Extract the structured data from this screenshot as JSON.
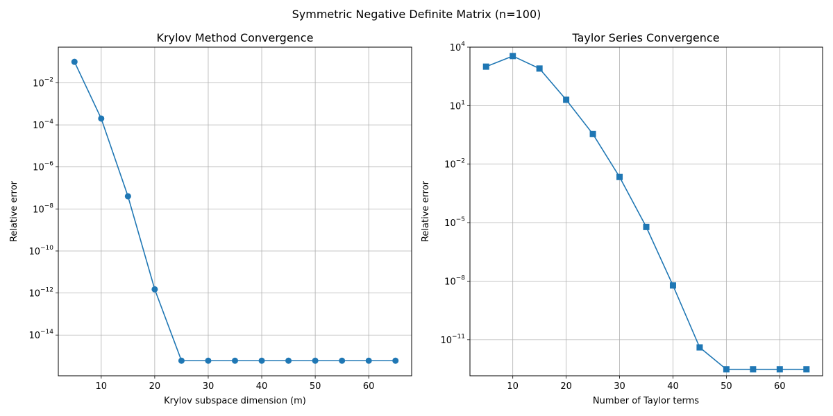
{
  "figure": {
    "suptitle": "Symmetric Negative Definite Matrix (n=100)"
  },
  "chart_data": [
    {
      "type": "line",
      "title": "Krylov Method Convergence",
      "xlabel": "Krylov subspace dimension (m)",
      "ylabel": "Relative error",
      "yscale": "log",
      "grid": true,
      "marker": "circle",
      "color": "#1f77b4",
      "x": [
        5,
        10,
        15,
        20,
        25,
        30,
        35,
        40,
        45,
        50,
        55,
        60,
        65
      ],
      "y": [
        0.1,
        0.0002,
        4e-08,
        1.5e-12,
        6e-16,
        6e-16,
        6e-16,
        6e-16,
        6e-16,
        6e-16,
        6e-16,
        6e-16,
        6e-16
      ],
      "xticks": [
        10,
        20,
        30,
        40,
        50,
        60
      ],
      "xtick_labels": [
        "10",
        "20",
        "30",
        "40",
        "50",
        "60"
      ],
      "xlim": [
        1.98,
        68.02
      ],
      "yticks": [
        1e-14,
        1e-12,
        1e-10,
        1e-08,
        1e-06,
        0.0001,
        0.01
      ],
      "ytick_labels": [
        {
          "base": "10",
          "exp": "−14"
        },
        {
          "base": "10",
          "exp": "−12"
        },
        {
          "base": "10",
          "exp": "−10"
        },
        {
          "base": "10",
          "exp": "−8"
        },
        {
          "base": "10",
          "exp": "−6"
        },
        {
          "base": "10",
          "exp": "−4"
        },
        {
          "base": "10",
          "exp": "−2"
        }
      ],
      "ylim": [
        1.15e-16,
        0.5
      ]
    },
    {
      "type": "line",
      "title": "Taylor Series Convergence",
      "xlabel": "Number of Taylor terms",
      "ylabel": "Relative error",
      "yscale": "log",
      "grid": true,
      "marker": "square",
      "color": "#1f77b4",
      "x": [
        5,
        10,
        15,
        20,
        25,
        30,
        35,
        40,
        45,
        50,
        55,
        60,
        65
      ],
      "y": [
        1000,
        3500,
        800,
        20,
        0.35,
        0.0022,
        6e-06,
        6e-09,
        4e-12,
        3e-13,
        3e-13,
        3e-13,
        3e-13
      ],
      "xticks": [
        10,
        20,
        30,
        40,
        50,
        60
      ],
      "xtick_labels": [
        "10",
        "20",
        "30",
        "40",
        "50",
        "60"
      ],
      "xlim": [
        1.98,
        68.02
      ],
      "yticks": [
        1e-11,
        1e-08,
        1e-05,
        0.01,
        10,
        10000
      ],
      "ytick_labels": [
        {
          "base": "10",
          "exp": "−11"
        },
        {
          "base": "10",
          "exp": "−8"
        },
        {
          "base": "10",
          "exp": "−5"
        },
        {
          "base": "10",
          "exp": "−2"
        },
        {
          "base": "10",
          "exp": "1"
        },
        {
          "base": "10",
          "exp": "4"
        }
      ],
      "ylim": [
        1.4e-13,
        10000
      ]
    }
  ]
}
